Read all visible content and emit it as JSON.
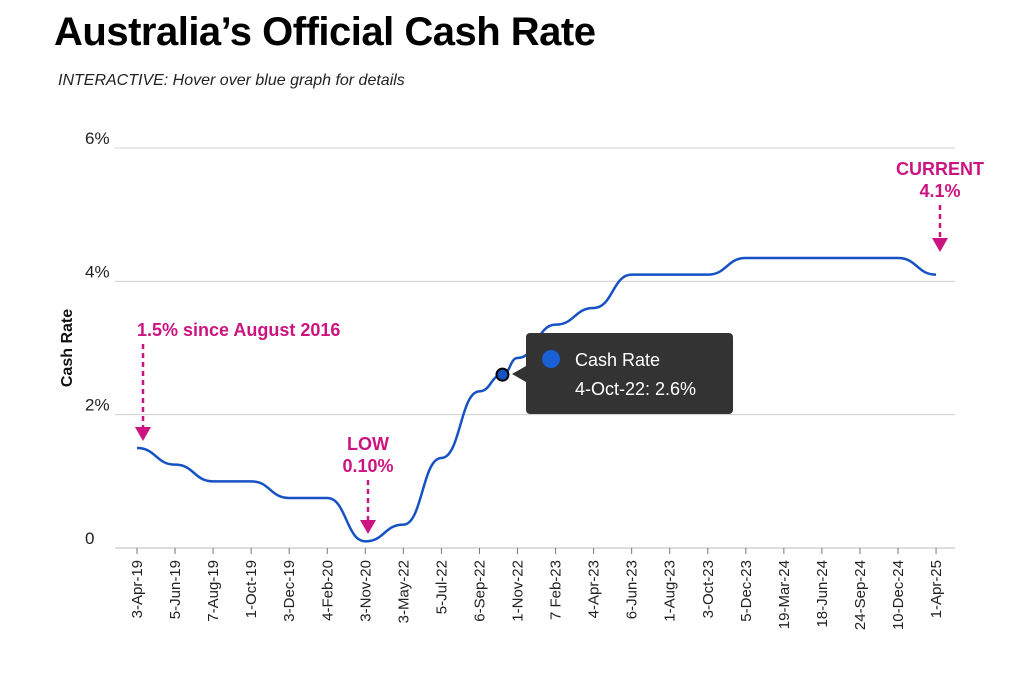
{
  "header": {
    "title": "Australia’s Official Cash Rate",
    "subtitle": "INTERACTIVE: Hover over blue graph for details"
  },
  "colors": {
    "line": "#1652c4",
    "annotation": "#cc1481",
    "grid": "#d0d0d0",
    "tooltip_bg": "#333333",
    "tooltip_marker": "#1a5fd6"
  },
  "chart_data": {
    "type": "line",
    "title": "Australia’s Official Cash Rate",
    "xlabel": "",
    "ylabel": "Cash Rate",
    "ylim": [
      0,
      6
    ],
    "y_ticks": [
      {
        "value": 0,
        "label": "0"
      },
      {
        "value": 2,
        "label": "2%"
      },
      {
        "value": 4,
        "label": "4%"
      },
      {
        "value": 6,
        "label": "6%"
      }
    ],
    "x_ticks": [
      "3-Apr-19",
      "5-Jun-19",
      "7-Aug-19",
      "1-Oct-19",
      "3-Dec-19",
      "4-Feb-20",
      "3-Nov-20",
      "3-May-22",
      "5-Jul-22",
      "6-Sep-22",
      "1-Nov-22",
      "7 Feb-23",
      "4-Apr-23",
      "6-Jun-23",
      "1-Aug-23",
      "3-Oct-23",
      "5-Dec-23",
      "19-Mar-24",
      "18-Jun-24",
      "24-Sep-24",
      "10-Dec-24",
      "1-Apr-25"
    ],
    "grid": true,
    "series": [
      {
        "name": "Cash Rate",
        "x": [
          "3-Apr-19",
          "5-Jun-19",
          "7-Aug-19",
          "1-Oct-19",
          "3-Dec-19",
          "4-Feb-20",
          "3-Nov-20",
          "3-May-22",
          "5-Jul-22",
          "6-Sep-22",
          "4-Oct-22",
          "1-Nov-22",
          "7 Feb-23",
          "4-Apr-23",
          "6-Jun-23",
          "1-Aug-23",
          "3-Oct-23",
          "5-Dec-23",
          "19-Mar-24",
          "18-Jun-24",
          "24-Sep-24",
          "10-Dec-24",
          "1-Apr-25"
        ],
        "values": [
          1.5,
          1.25,
          1.0,
          1.0,
          0.75,
          0.75,
          0.1,
          0.35,
          1.35,
          2.35,
          2.6,
          2.85,
          3.35,
          3.6,
          4.1,
          4.1,
          4.1,
          4.35,
          4.35,
          4.35,
          4.35,
          4.35,
          4.1
        ]
      }
    ],
    "annotations": [
      {
        "lines": [
          "1.5% since August 2016"
        ],
        "x": "3-Apr-19",
        "y": 1.5
      },
      {
        "lines": [
          "LOW",
          "0.10%"
        ],
        "x": "3-Nov-20",
        "y": 0.1
      },
      {
        "lines": [
          "CURRENT",
          "4.1%"
        ],
        "x": "1-Apr-25",
        "y": 4.1
      }
    ],
    "tooltip": {
      "series_name": "Cash Rate",
      "text": "4-Oct-22: 2.6%",
      "x": "4-Oct-22",
      "y": 2.6
    }
  }
}
